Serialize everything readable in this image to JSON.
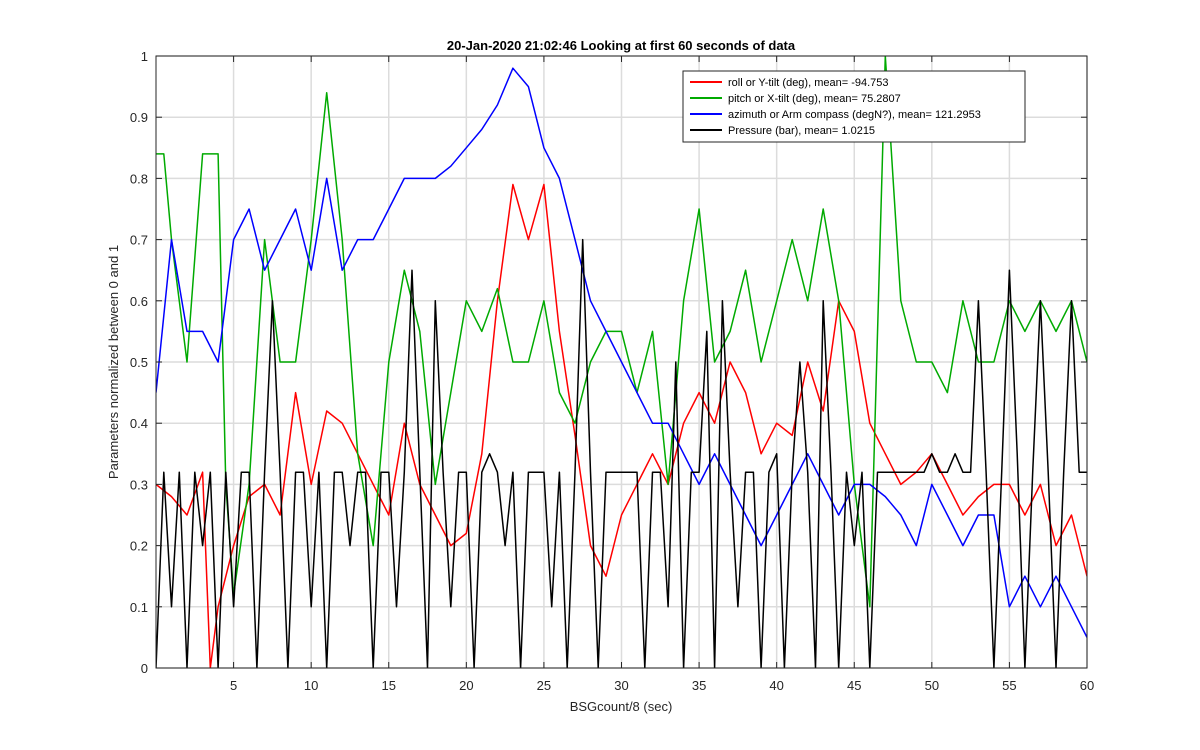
{
  "chart_data": {
    "type": "line",
    "title": "20-Jan-2020 21:02:46 Looking at first 60 seconds of data",
    "xlabel": "BSGcount/8 (sec)",
    "ylabel": "Parameters normalized between 0 and 1",
    "xlim": [
      0,
      60
    ],
    "ylim": [
      0,
      1
    ],
    "xticks": [
      5,
      10,
      15,
      20,
      25,
      30,
      35,
      40,
      45,
      50,
      55,
      60
    ],
    "yticks": [
      0,
      0.1,
      0.2,
      0.3,
      0.4,
      0.5,
      0.6,
      0.7,
      0.8,
      0.9,
      1
    ],
    "grid": true,
    "legend_position": "top-right",
    "series": [
      {
        "name": "roll or Y-tilt (deg), mean= -94.753",
        "color": "#ff0000",
        "x": [
          0,
          1,
          2,
          3,
          3.5,
          4,
          5,
          6,
          7,
          8,
          9,
          10,
          11,
          12,
          13,
          14,
          15,
          16,
          17,
          18,
          19,
          20,
          21,
          22,
          23,
          24,
          25,
          26,
          27,
          28,
          29,
          30,
          31,
          32,
          33,
          34,
          35,
          36,
          37,
          38,
          39,
          40,
          41,
          42,
          43,
          44,
          45,
          46,
          47,
          48,
          49,
          50,
          51,
          52,
          53,
          54,
          55,
          56,
          57,
          58,
          59,
          60
        ],
        "y": [
          0.3,
          0.28,
          0.25,
          0.32,
          0.0,
          0.1,
          0.2,
          0.28,
          0.3,
          0.25,
          0.45,
          0.3,
          0.42,
          0.4,
          0.35,
          0.3,
          0.25,
          0.4,
          0.3,
          0.25,
          0.2,
          0.22,
          0.35,
          0.6,
          0.79,
          0.7,
          0.79,
          0.55,
          0.38,
          0.2,
          0.15,
          0.25,
          0.3,
          0.35,
          0.3,
          0.4,
          0.45,
          0.4,
          0.5,
          0.45,
          0.35,
          0.4,
          0.38,
          0.5,
          0.42,
          0.6,
          0.55,
          0.4,
          0.35,
          0.3,
          0.32,
          0.35,
          0.3,
          0.25,
          0.28,
          0.3,
          0.3,
          0.25,
          0.3,
          0.2,
          0.25,
          0.15
        ]
      },
      {
        "name": "pitch or X-tilt (deg), mean= 75.2807",
        "color": "#00aa00",
        "x": [
          0,
          0.5,
          1,
          2,
          3,
          4,
          4.5,
          5,
          6,
          7,
          8,
          9,
          10,
          11,
          12,
          13,
          14,
          15,
          16,
          17,
          18,
          19,
          20,
          21,
          22,
          23,
          24,
          25,
          26,
          27,
          28,
          29,
          30,
          31,
          32,
          33,
          34,
          35,
          36,
          37,
          38,
          39,
          40,
          41,
          42,
          43,
          44,
          45,
          46,
          47,
          48,
          49,
          50,
          51,
          52,
          53,
          54,
          55,
          56,
          57,
          58,
          59,
          60
        ],
        "y": [
          0.84,
          0.84,
          0.7,
          0.5,
          0.84,
          0.84,
          0.3,
          0.12,
          0.3,
          0.7,
          0.5,
          0.5,
          0.7,
          0.94,
          0.7,
          0.35,
          0.2,
          0.5,
          0.65,
          0.55,
          0.3,
          0.45,
          0.6,
          0.55,
          0.62,
          0.5,
          0.5,
          0.6,
          0.45,
          0.4,
          0.5,
          0.55,
          0.55,
          0.45,
          0.55,
          0.3,
          0.6,
          0.75,
          0.5,
          0.55,
          0.65,
          0.5,
          0.6,
          0.7,
          0.6,
          0.75,
          0.6,
          0.3,
          0.1,
          1.0,
          0.6,
          0.5,
          0.5,
          0.45,
          0.6,
          0.5,
          0.5,
          0.6,
          0.55,
          0.6,
          0.55,
          0.6,
          0.5
        ]
      },
      {
        "name": "azimuth or Arm compass (degN?), mean= 121.2953",
        "color": "#0000ff",
        "x": [
          0,
          1,
          2,
          3,
          4,
          5,
          6,
          7,
          8,
          9,
          10,
          11,
          12,
          13,
          14,
          15,
          16,
          17,
          18,
          19,
          20,
          21,
          22,
          23,
          24,
          25,
          26,
          27,
          28,
          29,
          30,
          31,
          32,
          33,
          34,
          35,
          36,
          37,
          38,
          39,
          40,
          41,
          42,
          43,
          44,
          45,
          46,
          47,
          48,
          49,
          50,
          51,
          52,
          53,
          54,
          55,
          56,
          57,
          58,
          59,
          60
        ],
        "y": [
          0.45,
          0.7,
          0.55,
          0.55,
          0.5,
          0.7,
          0.75,
          0.65,
          0.7,
          0.75,
          0.65,
          0.8,
          0.65,
          0.7,
          0.7,
          0.75,
          0.8,
          0.8,
          0.8,
          0.82,
          0.85,
          0.88,
          0.92,
          0.98,
          0.95,
          0.85,
          0.8,
          0.7,
          0.6,
          0.55,
          0.5,
          0.45,
          0.4,
          0.4,
          0.35,
          0.3,
          0.35,
          0.3,
          0.25,
          0.2,
          0.25,
          0.3,
          0.35,
          0.3,
          0.25,
          0.3,
          0.3,
          0.28,
          0.25,
          0.2,
          0.3,
          0.25,
          0.2,
          0.25,
          0.25,
          0.1,
          0.15,
          0.1,
          0.15,
          0.1,
          0.05
        ]
      },
      {
        "name": "Pressure (bar), mean= 1.0215",
        "color": "#000000",
        "x": [
          0,
          0.5,
          1,
          1.5,
          2,
          2.5,
          3,
          3.5,
          4,
          4.5,
          5,
          5.5,
          6,
          6.5,
          7,
          7.5,
          8,
          8.5,
          9,
          9.5,
          10,
          10.5,
          11,
          11.5,
          12,
          12.5,
          13,
          13.5,
          14,
          14.5,
          15,
          15.5,
          16,
          16.5,
          17,
          17.5,
          18,
          18.5,
          19,
          19.5,
          20,
          20.5,
          21,
          21.5,
          22,
          22.5,
          23,
          23.5,
          24,
          24.5,
          25,
          25.5,
          26,
          26.5,
          27,
          27.5,
          28,
          28.5,
          29,
          29.5,
          30,
          30.5,
          31,
          31.5,
          32,
          32.5,
          33,
          33.5,
          34,
          34.5,
          35,
          35.5,
          36,
          36.5,
          37,
          37.5,
          38,
          38.5,
          39,
          39.5,
          40,
          40.5,
          41,
          41.5,
          42,
          42.5,
          43,
          43.5,
          44,
          44.5,
          45,
          45.5,
          46,
          46.5,
          47,
          47.5,
          48,
          48.5,
          49,
          49.5,
          50,
          50.5,
          51,
          51.5,
          52,
          52.5,
          53,
          53.5,
          54,
          54.5,
          55,
          55.5,
          56,
          56.5,
          57,
          57.5,
          58,
          58.5,
          59,
          59.5,
          60
        ],
        "y": [
          0.0,
          0.32,
          0.1,
          0.32,
          0.0,
          0.32,
          0.2,
          0.32,
          0.0,
          0.32,
          0.1,
          0.32,
          0.32,
          0.0,
          0.32,
          0.6,
          0.32,
          0.0,
          0.32,
          0.32,
          0.1,
          0.32,
          0.0,
          0.32,
          0.32,
          0.2,
          0.32,
          0.32,
          0.0,
          0.32,
          0.32,
          0.1,
          0.32,
          0.65,
          0.32,
          0.0,
          0.6,
          0.32,
          0.1,
          0.32,
          0.32,
          0.0,
          0.32,
          0.35,
          0.32,
          0.2,
          0.32,
          0.0,
          0.32,
          0.32,
          0.32,
          0.1,
          0.32,
          0.0,
          0.32,
          0.7,
          0.32,
          0.0,
          0.32,
          0.32,
          0.32,
          0.32,
          0.32,
          0.0,
          0.32,
          0.32,
          0.1,
          0.5,
          0.0,
          0.32,
          0.32,
          0.55,
          0.0,
          0.6,
          0.32,
          0.1,
          0.32,
          0.32,
          0.0,
          0.32,
          0.35,
          0.0,
          0.32,
          0.5,
          0.32,
          0.0,
          0.6,
          0.32,
          0.0,
          0.32,
          0.2,
          0.32,
          0.0,
          0.32,
          0.32,
          0.32,
          0.32,
          0.32,
          0.32,
          0.32,
          0.35,
          0.32,
          0.32,
          0.35,
          0.32,
          0.32,
          0.6,
          0.32,
          0.0,
          0.32,
          0.65,
          0.35,
          0.0,
          0.32,
          0.6,
          0.32,
          0.0,
          0.32,
          0.6,
          0.32,
          0.32
        ]
      }
    ]
  }
}
